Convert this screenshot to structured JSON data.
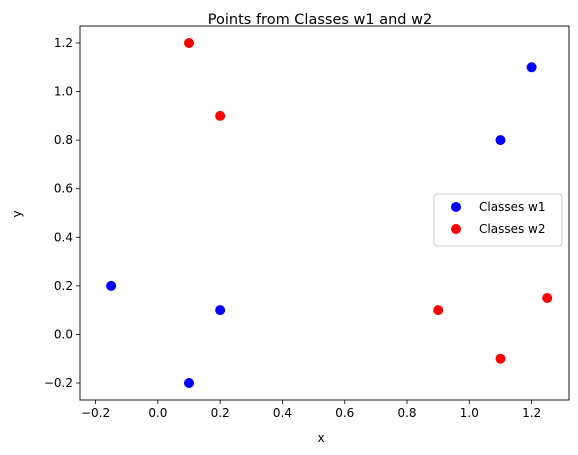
{
  "chart_data": {
    "type": "scatter",
    "title": "Points from Classes w1 and w2",
    "xlabel": "x",
    "ylabel": "y",
    "xlim": [
      -0.25,
      1.32
    ],
    "ylim": [
      -0.27,
      1.27
    ],
    "xticks": [
      -0.2,
      0.0,
      0.2,
      0.4,
      0.6,
      0.8,
      1.0,
      1.2
    ],
    "xtick_labels": [
      "−0.2",
      "0.0",
      "0.2",
      "0.4",
      "0.6",
      "0.8",
      "1.0",
      "1.2"
    ],
    "yticks": [
      -0.2,
      0.0,
      0.2,
      0.4,
      0.6,
      0.8,
      1.0,
      1.2
    ],
    "ytick_labels": [
      "−0.2",
      "0.0",
      "0.2",
      "0.4",
      "0.6",
      "0.8",
      "1.0",
      "1.2"
    ],
    "grid": false,
    "legend_position": "center-right",
    "series": [
      {
        "name": "Classes w1",
        "color": "#0000ff",
        "points": [
          {
            "x": -0.15,
            "y": 0.2
          },
          {
            "x": 0.1,
            "y": -0.2
          },
          {
            "x": 0.2,
            "y": 0.1
          },
          {
            "x": 1.1,
            "y": 0.8
          },
          {
            "x": 1.2,
            "y": 1.1
          }
        ]
      },
      {
        "name": "Classes w2",
        "color": "#ff0000",
        "points": [
          {
            "x": 0.1,
            "y": 1.2
          },
          {
            "x": 0.2,
            "y": 0.9
          },
          {
            "x": 0.9,
            "y": 0.1
          },
          {
            "x": 1.1,
            "y": -0.1
          },
          {
            "x": 1.25,
            "y": 0.15
          }
        ]
      }
    ]
  }
}
